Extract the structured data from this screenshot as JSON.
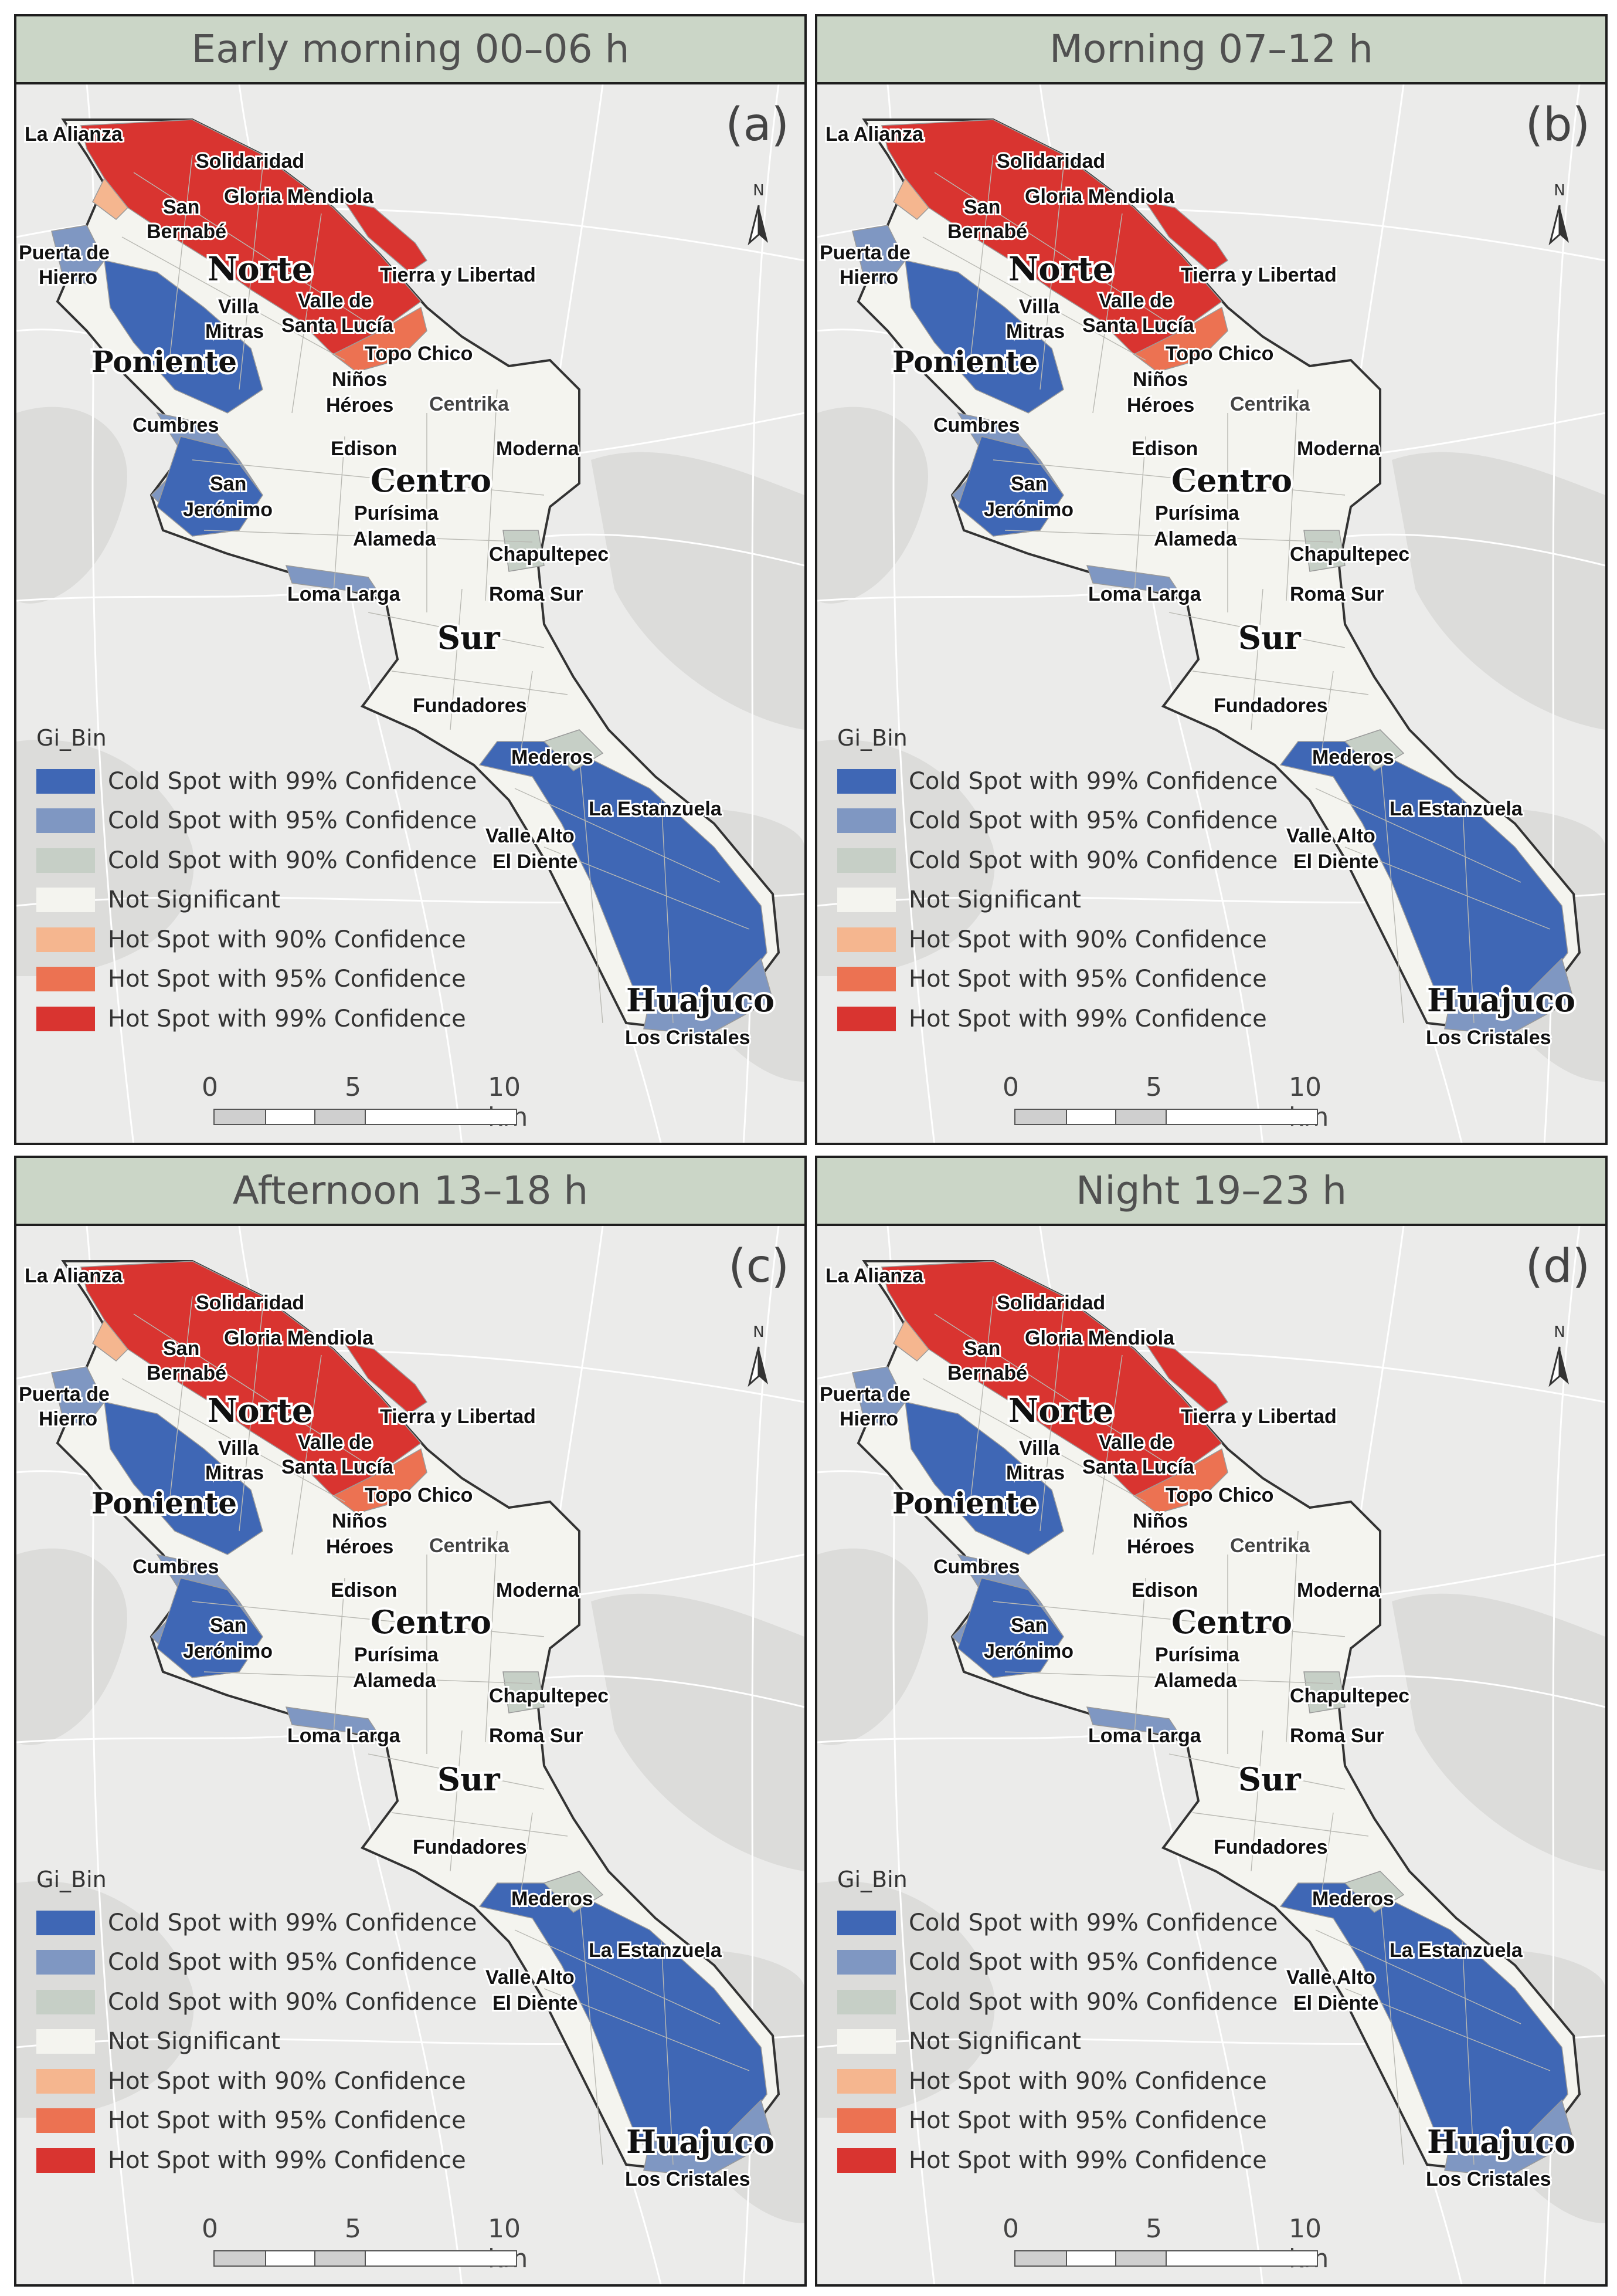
{
  "panels": [
    {
      "id": "a",
      "title": "Early morning 00–06 h",
      "letter": "(a)"
    },
    {
      "id": "b",
      "title": "Morning 07–12 h",
      "letter": "(b)"
    },
    {
      "id": "c",
      "title": "Afternoon 13–18 h",
      "letter": "(c)"
    },
    {
      "id": "d",
      "title": "Night 19–23 h",
      "letter": "(d)"
    }
  ],
  "legend": {
    "title": "Gi_Bin",
    "items": [
      {
        "label": "Cold Spot with 99% Confidence",
        "color": "#3f67b5"
      },
      {
        "label": "Cold Spot with 95% Confidence",
        "color": "#7f97c2"
      },
      {
        "label": "Cold Spot with 90% Confidence",
        "color": "#c6cfc6"
      },
      {
        "label": "Not Significant",
        "color": "#f4f4ef"
      },
      {
        "label": "Hot Spot with 90% Confidence",
        "color": "#f5b68f"
      },
      {
        "label": "Hot Spot with 95% Confidence",
        "color": "#ec7252"
      },
      {
        "label": "Hot Spot with 99% Confidence",
        "color": "#d93430"
      }
    ]
  },
  "scale_bar": {
    "labels": [
      "0",
      "5",
      "10 km"
    ]
  },
  "north_arrow": {
    "label": "N",
    "icon": "north-arrow-icon"
  },
  "place_labels": {
    "la_alianza": "La Alianza",
    "solidaridad": "Solidaridad",
    "san_bernabe_1": "San",
    "san_bernabe_2": "Bernabé",
    "gloria_mendiola": "Gloria Mendiola",
    "puerta_hierro_1": "Puerta de",
    "puerta_hierro_2": "Hierro",
    "norte": "Norte",
    "tierra_libertad": "Tierra y Libertad",
    "villa_mitras_1": "Villa",
    "villa_mitras_2": "Mitras",
    "valle_santa_lucia_1": "Valle de",
    "valle_santa_lucia_2": "Santa Lucía",
    "poniente": "Poniente",
    "topo_chico": "Topo Chico",
    "ninos_heroes_1": "Niños",
    "ninos_heroes_2": "Héroes",
    "centrika": "Centrika",
    "cumbres": "Cumbres",
    "edison": "Edison",
    "moderna": "Moderna",
    "centro": "Centro",
    "san_jeronimo_1": "San",
    "san_jeronimo_2": "Jerónimo",
    "purisima": "Purísima",
    "alameda": "Alameda",
    "chapultepec": "Chapultepec",
    "loma_larga": "Loma Larga",
    "roma_sur": "Roma Sur",
    "sur": "Sur",
    "fundadores": "Fundadores",
    "mederos": "Mederos",
    "la_estanzuela": "La Estanzuela",
    "valle_alto_1": "Valle Alto",
    "valle_alto_2": "El Diente",
    "huajuco": "Huajuco",
    "los_cristales": "Los Cristales"
  }
}
